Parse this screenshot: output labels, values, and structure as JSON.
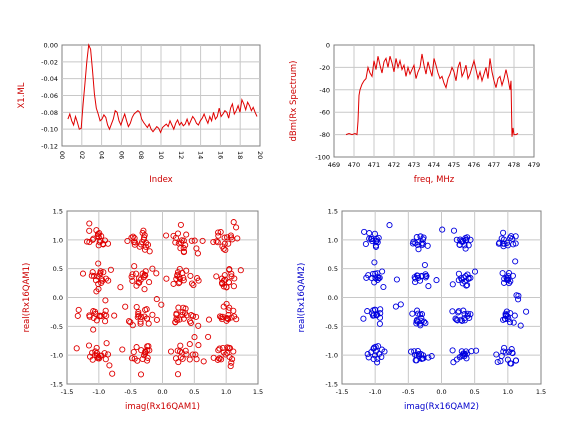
{
  "chart_data": [
    {
      "id": "x1",
      "type": "line",
      "color": "#e00000",
      "xlabel": "Index",
      "ylabel": "X1.ML",
      "ylim": [
        -0.12,
        0.0
      ],
      "yticks": [
        "0.00",
        "-0.02",
        "-0.04",
        "-0.06",
        "-0.08",
        "-0.10",
        "-0.12"
      ],
      "xticks": [
        "00",
        "02",
        "04",
        "06",
        "08",
        "10",
        "12",
        "14",
        "16",
        "18",
        "20"
      ],
      "grid": true,
      "series": [
        {
          "x": [
            0,
            1,
            2,
            3,
            4,
            5,
            6,
            7,
            8,
            9,
            10,
            11,
            12,
            13,
            14,
            15,
            16,
            17,
            18,
            19,
            20,
            21,
            22,
            23,
            24,
            25,
            26,
            27,
            28,
            29,
            30,
            31,
            32,
            33,
            34,
            35,
            36,
            37,
            38,
            39,
            40,
            41,
            42,
            43,
            44,
            45,
            46,
            47,
            48,
            49,
            50,
            51,
            52,
            53,
            54,
            55,
            56,
            57,
            58,
            59,
            60,
            61,
            62,
            63,
            64,
            65,
            66,
            67,
            68,
            69,
            70,
            71,
            72,
            73,
            74,
            75,
            76,
            77,
            78,
            79,
            80,
            81,
            82,
            83,
            84,
            85,
            86,
            87,
            88,
            89,
            90,
            91,
            92,
            93,
            94,
            95,
            96,
            97,
            98,
            99,
            100
          ],
          "values": [
            -0.088,
            -0.082,
            -0.09,
            -0.095,
            -0.085,
            -0.092,
            -0.1,
            -0.099,
            -0.07,
            -0.045,
            -0.02,
            0.0,
            -0.005,
            -0.03,
            -0.058,
            -0.075,
            -0.082,
            -0.09,
            -0.088,
            -0.083,
            -0.086,
            -0.095,
            -0.1,
            -0.094,
            -0.088,
            -0.078,
            -0.08,
            -0.09,
            -0.095,
            -0.088,
            -0.082,
            -0.09,
            -0.097,
            -0.093,
            -0.086,
            -0.082,
            -0.08,
            -0.078,
            -0.08,
            -0.088,
            -0.092,
            -0.095,
            -0.098,
            -0.094,
            -0.1,
            -0.103,
            -0.1,
            -0.097,
            -0.099,
            -0.104,
            -0.098,
            -0.096,
            -0.094,
            -0.097,
            -0.09,
            -0.095,
            -0.1,
            -0.093,
            -0.089,
            -0.095,
            -0.092,
            -0.096,
            -0.094,
            -0.088,
            -0.095,
            -0.09,
            -0.085,
            -0.088,
            -0.093,
            -0.095,
            -0.09,
            -0.087,
            -0.082,
            -0.088,
            -0.093,
            -0.085,
            -0.09,
            -0.08,
            -0.088,
            -0.085,
            -0.075,
            -0.085,
            -0.082,
            -0.078,
            -0.08,
            -0.087,
            -0.075,
            -0.07,
            -0.082,
            -0.078,
            -0.072,
            -0.08,
            -0.065,
            -0.07,
            -0.077,
            -0.068,
            -0.072,
            -0.078,
            -0.074,
            -0.08,
            -0.085
          ]
        }
      ]
    },
    {
      "id": "spectrum",
      "type": "line",
      "color": "#e00000",
      "xlabel": "freq, MHz",
      "ylabel": "dBm(Rx Spectrum)",
      "xlim": [
        469,
        479
      ],
      "ylim": [
        -100,
        0
      ],
      "xticks": [
        "469",
        "470",
        "471",
        "472",
        "473",
        "474",
        "475",
        "476",
        "477",
        "478",
        "479"
      ],
      "yticks": [
        "0",
        "-20",
        "-40",
        "-60",
        "-80",
        "-100"
      ],
      "grid": true,
      "series": [
        {
          "x": [
            469.6,
            469.75,
            469.9,
            470.05,
            470.15,
            470.2,
            470.25,
            470.3,
            470.4,
            470.5,
            470.6,
            470.7,
            470.8,
            470.9,
            471.0,
            471.1,
            471.2,
            471.3,
            471.4,
            471.5,
            471.6,
            471.7,
            471.8,
            471.9,
            472.0,
            472.1,
            472.2,
            472.3,
            472.4,
            472.5,
            472.6,
            472.7,
            472.8,
            472.9,
            473.0,
            473.1,
            473.2,
            473.3,
            473.4,
            473.5,
            473.6,
            473.7,
            473.8,
            473.9,
            474.0,
            474.1,
            474.2,
            474.3,
            474.4,
            474.5,
            474.6,
            474.7,
            474.8,
            474.9,
            475.0,
            475.1,
            475.2,
            475.3,
            475.4,
            475.5,
            475.6,
            475.7,
            475.8,
            475.9,
            476.0,
            476.1,
            476.2,
            476.3,
            476.4,
            476.5,
            476.6,
            476.7,
            476.8,
            476.9,
            477.0,
            477.1,
            477.2,
            477.3,
            477.4,
            477.5,
            477.6,
            477.7,
            477.8,
            477.85,
            477.9,
            477.95,
            478.0,
            478.1,
            478.2
          ],
          "values": [
            -80,
            -79,
            -80,
            -79,
            -80,
            -68,
            -45,
            -40,
            -35,
            -32,
            -30,
            -20,
            -25,
            -28,
            -14,
            -22,
            -10,
            -18,
            -25,
            -15,
            -12,
            -20,
            -10,
            -16,
            -24,
            -12,
            -20,
            -14,
            -22,
            -18,
            -28,
            -20,
            -26,
            -22,
            -18,
            -30,
            -24,
            -20,
            -8,
            -18,
            -26,
            -15,
            -22,
            -28,
            -12,
            -18,
            -25,
            -30,
            -28,
            -34,
            -38,
            -30,
            -26,
            -20,
            -24,
            -32,
            -20,
            -15,
            -28,
            -24,
            -18,
            -30,
            -26,
            -20,
            -14,
            -22,
            -30,
            -24,
            -32,
            -26,
            -20,
            -30,
            -12,
            -24,
            -32,
            -38,
            -30,
            -28,
            -36,
            -30,
            -22,
            -30,
            -40,
            -32,
            -82,
            -74,
            -80,
            -80,
            -79
          ]
        }
      ]
    },
    {
      "id": "qam1",
      "type": "scatter",
      "color": "#e00000",
      "xlabel": "imag(Rx16QAM1)",
      "ylabel": "real(Rx16QAM1)",
      "xlim": [
        -1.5,
        1.5
      ],
      "ylim": [
        -1.5,
        1.5
      ],
      "xticks": [
        "-1.5",
        "-1.0",
        "-0.5",
        "0.0",
        "0.5",
        "1.0",
        "1.5"
      ],
      "yticks": [
        "1.5",
        "1.0",
        "0.5",
        "0.0",
        "-0.5",
        "-1.0",
        "-1.5"
      ],
      "grid": true,
      "centers": [
        -1.0,
        -0.33,
        0.33,
        1.0
      ],
      "points_per_cluster": 20,
      "spread": 0.09,
      "seed": 7
    },
    {
      "id": "qam2",
      "type": "scatter",
      "color": "#0000e0",
      "xlabel": "imag(Rx16QAM2)",
      "ylabel": "real(Rx16QAM2)",
      "xlim": [
        -1.5,
        1.5
      ],
      "ylim": [
        -1.5,
        1.5
      ],
      "xticks": [
        "-1.5",
        "-1.0",
        "-0.5",
        "0.0",
        "0.5",
        "1.0",
        "1.5"
      ],
      "yticks": [
        "1.5",
        "1.0",
        "0.5",
        "0.0",
        "-0.5",
        "-1.0",
        "-1.5"
      ],
      "grid": true,
      "centers": [
        -1.0,
        -0.33,
        0.33,
        1.0
      ],
      "points_per_cluster": 16,
      "spread": 0.07,
      "seed": 13
    }
  ]
}
